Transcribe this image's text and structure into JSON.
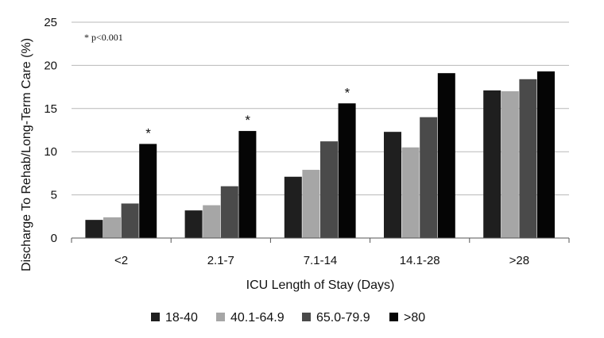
{
  "chart_data": {
    "type": "bar",
    "title": "",
    "xlabel": "ICU Length of Stay (Days)",
    "ylabel": "Discharge To Rehab/Long-Term Care (%)",
    "ylim": [
      0,
      25
    ],
    "yticks": [
      0,
      5,
      10,
      15,
      20,
      25
    ],
    "grid": true,
    "legend_position": "bottom",
    "categories": [
      "<2",
      "2.1-7",
      "7.1-14",
      "14.1-28",
      ">28"
    ],
    "series": [
      {
        "name": "18-40",
        "color": "#1f1f1f",
        "values": [
          2.1,
          3.2,
          7.1,
          12.3,
          17.1
        ]
      },
      {
        "name": "40.1-64.9",
        "color": "#a6a6a6",
        "values": [
          2.4,
          3.8,
          7.9,
          10.5,
          17.0
        ]
      },
      {
        "name": "65.0-79.9",
        "color": "#4a4a4a",
        "values": [
          4.0,
          6.0,
          11.2,
          14.0,
          18.4
        ]
      },
      {
        "name": ">80",
        "color": "#050505",
        "values": [
          10.9,
          12.4,
          15.6,
          19.1,
          19.3
        ]
      }
    ],
    "significance_marker": "*",
    "significant_categories": [
      0,
      1,
      2
    ],
    "annotation": "* p<0.001"
  }
}
